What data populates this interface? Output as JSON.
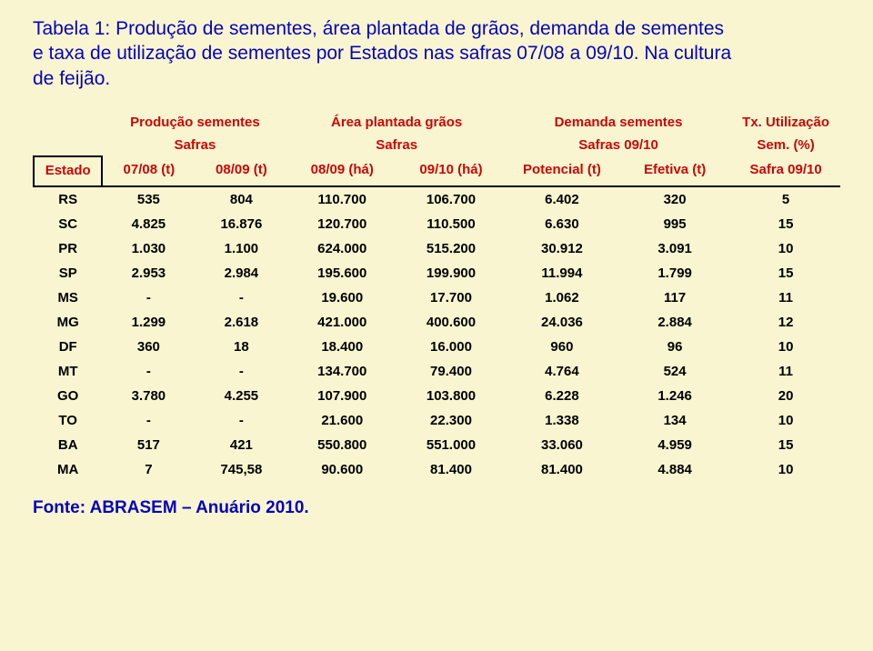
{
  "title_lines": [
    "Tabela 1: Produção de sementes, área plantada de grãos, demanda de sementes",
    "e taxa de utilização de sementes por Estados nas safras 07/08 a 09/10. Na cultura",
    "de feijão."
  ],
  "colors": {
    "background": "#f9f5d0",
    "title": "#0404b8",
    "header_text": "#c80808",
    "body_text": "#000000",
    "border": "#000000"
  },
  "fonts": {
    "title_size": 21,
    "header_size": 15,
    "body_size": 15,
    "source_size": 19,
    "family": "Arial"
  },
  "header": {
    "groups": [
      "Produção sementes",
      "Área plantada grãos",
      "Demanda sementes",
      "Tx. Utilização"
    ],
    "subs": [
      "Safras",
      "Safras",
      "Safras 09/10",
      "Sem. (%)"
    ],
    "cols": [
      "Estado",
      "07/08 (t)",
      "08/09 (t)",
      "08/09 (há)",
      "09/10 (há)",
      "Potencial (t)",
      "Efetiva (t)",
      "Safra 09/10"
    ]
  },
  "rows": [
    [
      "RS",
      "535",
      "804",
      "110.700",
      "106.700",
      "6.402",
      "320",
      "5"
    ],
    [
      "SC",
      "4.825",
      "16.876",
      "120.700",
      "110.500",
      "6.630",
      "995",
      "15"
    ],
    [
      "PR",
      "1.030",
      "1.100",
      "624.000",
      "515.200",
      "30.912",
      "3.091",
      "10"
    ],
    [
      "SP",
      "2.953",
      "2.984",
      "195.600",
      "199.900",
      "11.994",
      "1.799",
      "15"
    ],
    [
      "MS",
      "-",
      "-",
      "19.600",
      "17.700",
      "1.062",
      "117",
      "11"
    ],
    [
      "MG",
      "1.299",
      "2.618",
      "421.000",
      "400.600",
      "24.036",
      "2.884",
      "12"
    ],
    [
      "DF",
      "360",
      "18",
      "18.400",
      "16.000",
      "960",
      "96",
      "10"
    ],
    [
      "MT",
      "-",
      "-",
      "134.700",
      "79.400",
      "4.764",
      "524",
      "11"
    ],
    [
      "GO",
      "3.780",
      "4.255",
      "107.900",
      "103.800",
      "6.228",
      "1.246",
      "20"
    ],
    [
      "TO",
      "-",
      "-",
      "21.600",
      "22.300",
      "1.338",
      "134",
      "10"
    ],
    [
      "BA",
      "517",
      "421",
      "550.800",
      "551.000",
      "33.060",
      "4.959",
      "15"
    ],
    [
      "MA",
      "7",
      "745,58",
      "90.600",
      "81.400",
      "81.400",
      "4.884",
      "10"
    ]
  ],
  "source": "Fonte: ABRASEM – Anuário 2010.",
  "col_widths_pct": [
    8.5,
    11.5,
    11.5,
    13.5,
    13.5,
    14,
    14,
    13.5
  ]
}
